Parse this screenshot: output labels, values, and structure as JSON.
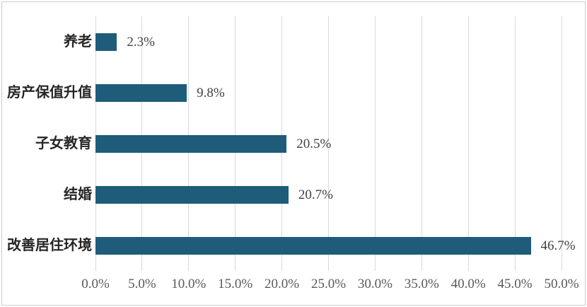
{
  "chart_data": {
    "type": "bar",
    "orientation": "horizontal",
    "title": "",
    "xlabel": "",
    "ylabel": "",
    "categories": [
      "养老",
      "房产保值升值",
      "子女教育",
      "结婚",
      "改善居住环境"
    ],
    "values": [
      2.3,
      9.8,
      20.5,
      20.7,
      46.7
    ],
    "value_labels": [
      "2.3%",
      "9.8%",
      "20.5%",
      "20.7%",
      "46.7%"
    ],
    "x_tick_labels": [
      "0.0%",
      "5.0%",
      "10.0%",
      "15.0%",
      "20.0%",
      "25.0%",
      "30.0%",
      "35.0%",
      "40.0%",
      "45.0%",
      "50.0%"
    ],
    "x_tick_values": [
      0,
      5,
      10,
      15,
      20,
      25,
      30,
      35,
      40,
      45,
      50
    ],
    "xlim": [
      0,
      50
    ],
    "grid": "vertical",
    "legend": "none",
    "colors": {
      "bar_fill": "#1e5c7a",
      "gridline": "#d9d9d9",
      "tick_text": "#595959",
      "value_text": "#404040",
      "category_text": "#262626",
      "frame_border": "#cccccc",
      "background": "#ffffff"
    }
  }
}
